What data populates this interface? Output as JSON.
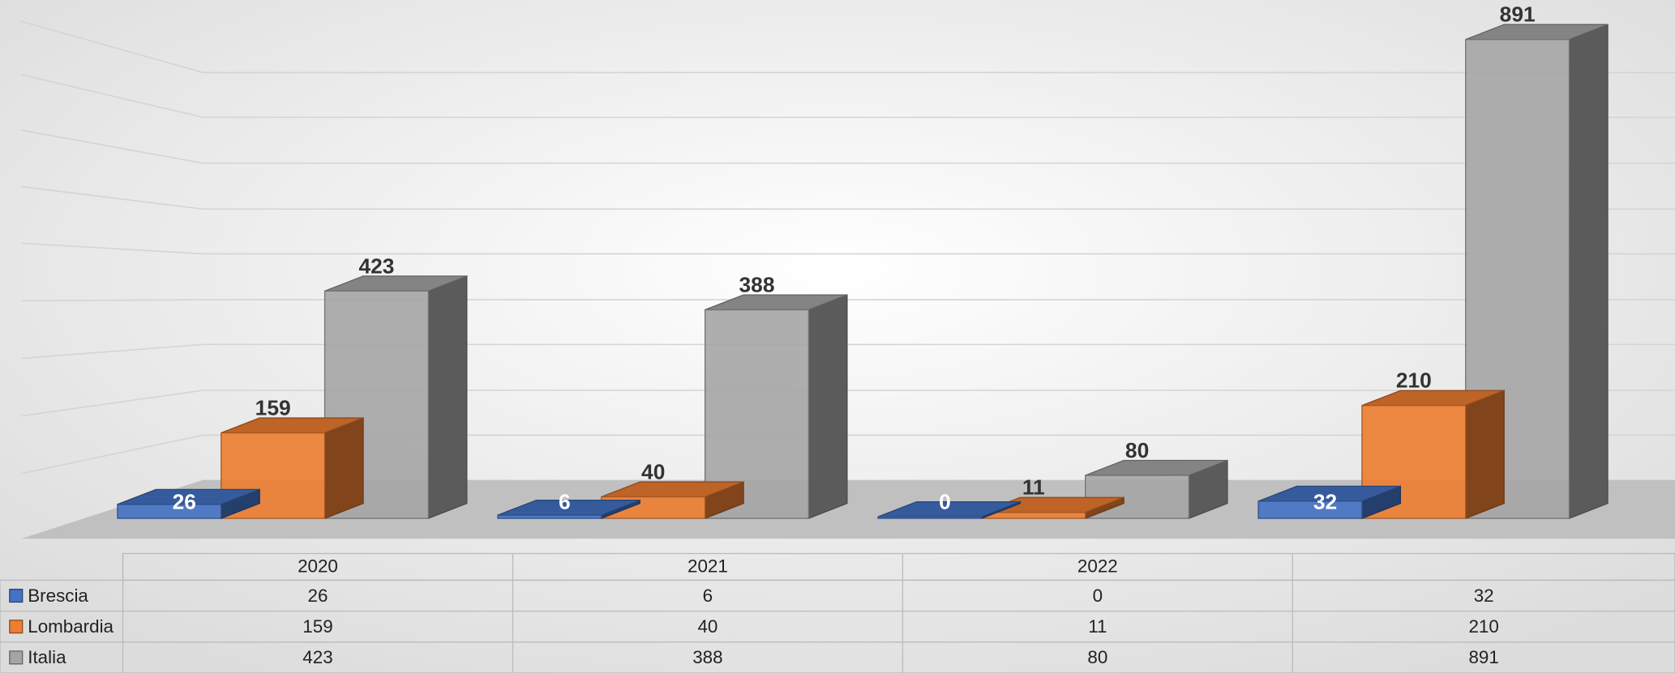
{
  "chart_data": {
    "type": "bar3d",
    "categories": [
      "2020",
      "2021",
      "2022",
      null
    ],
    "series": [
      {
        "name": "Brescia",
        "color": "#4472c4",
        "values": [
          26,
          6,
          0,
          32
        ]
      },
      {
        "name": "Lombardia",
        "color": "#ed7d31",
        "values": [
          159,
          40,
          11,
          210
        ]
      },
      {
        "name": "Italia",
        "color": "#a5a5a5",
        "values": [
          423,
          388,
          80,
          891
        ]
      }
    ]
  }
}
